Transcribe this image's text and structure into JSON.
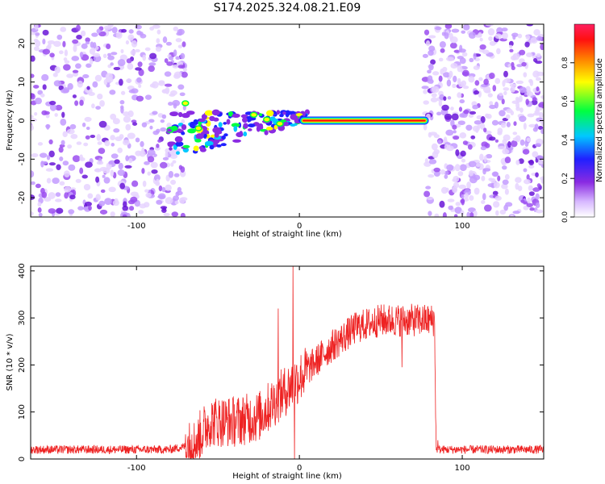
{
  "title": "S174.2025.324.08.21.E09",
  "colors": {
    "snr_line": "#ee2222",
    "track": "#ee1111",
    "noise": "#7a1fe0"
  },
  "chart_data": [
    {
      "type": "heatmap",
      "xlabel": "Height of straight line (km)",
      "ylabel": "Frequency (Hz)",
      "xlim": [
        -165,
        150
      ],
      "ylim": [
        -25,
        25
      ],
      "xticks": [
        -100,
        0,
        100
      ],
      "yticks": [
        -20,
        -10,
        0,
        10,
        20
      ],
      "colorbar": {
        "label": "Normalized spectral amplitude",
        "range": [
          0,
          1
        ],
        "ticks": [
          "0.0",
          "0.2",
          "0.4",
          "0.6",
          "0.8"
        ]
      },
      "regions": [
        {
          "name": "noise-left",
          "x_range": [
            -165,
            -70
          ],
          "amplitude": 0.15
        },
        {
          "name": "scattered-echo",
          "x_range": [
            -80,
            5
          ],
          "freq_center_hz": 1,
          "amplitude": 0.4
        },
        {
          "name": "steady-tone",
          "x_range": [
            0,
            77
          ],
          "freq_hz": 0,
          "amplitude": 0.95
        },
        {
          "name": "noise-right",
          "x_range": [
            77,
            150
          ],
          "amplitude": 0.15
        }
      ]
    },
    {
      "type": "line",
      "xlabel": "Height of straight line (km)",
      "ylabel": "SNR (10 * v/v)",
      "xlim": [
        -165,
        150
      ],
      "ylim": [
        0,
        410
      ],
      "xticks": [
        -100,
        0,
        100
      ],
      "yticks": [
        0,
        100,
        200,
        300,
        400
      ],
      "trend_points": [
        {
          "x": -165,
          "y": 20
        },
        {
          "x": -80,
          "y": 20
        },
        {
          "x": -65,
          "y": 30
        },
        {
          "x": -55,
          "y": 80
        },
        {
          "x": -40,
          "y": 80
        },
        {
          "x": -25,
          "y": 90
        },
        {
          "x": -10,
          "y": 140
        },
        {
          "x": 5,
          "y": 190
        },
        {
          "x": 20,
          "y": 240
        },
        {
          "x": 35,
          "y": 280
        },
        {
          "x": 50,
          "y": 295
        },
        {
          "x": 70,
          "y": 295
        },
        {
          "x": 83,
          "y": 295
        },
        {
          "x": 84,
          "y": 20
        },
        {
          "x": 150,
          "y": 20
        }
      ],
      "spikes": [
        {
          "x": -4,
          "y": 410
        },
        {
          "x": -3,
          "y": 0
        },
        {
          "x": -13,
          "y": 320
        },
        {
          "x": 63,
          "y": 195
        },
        {
          "x": 85,
          "y": 40
        }
      ]
    }
  ]
}
